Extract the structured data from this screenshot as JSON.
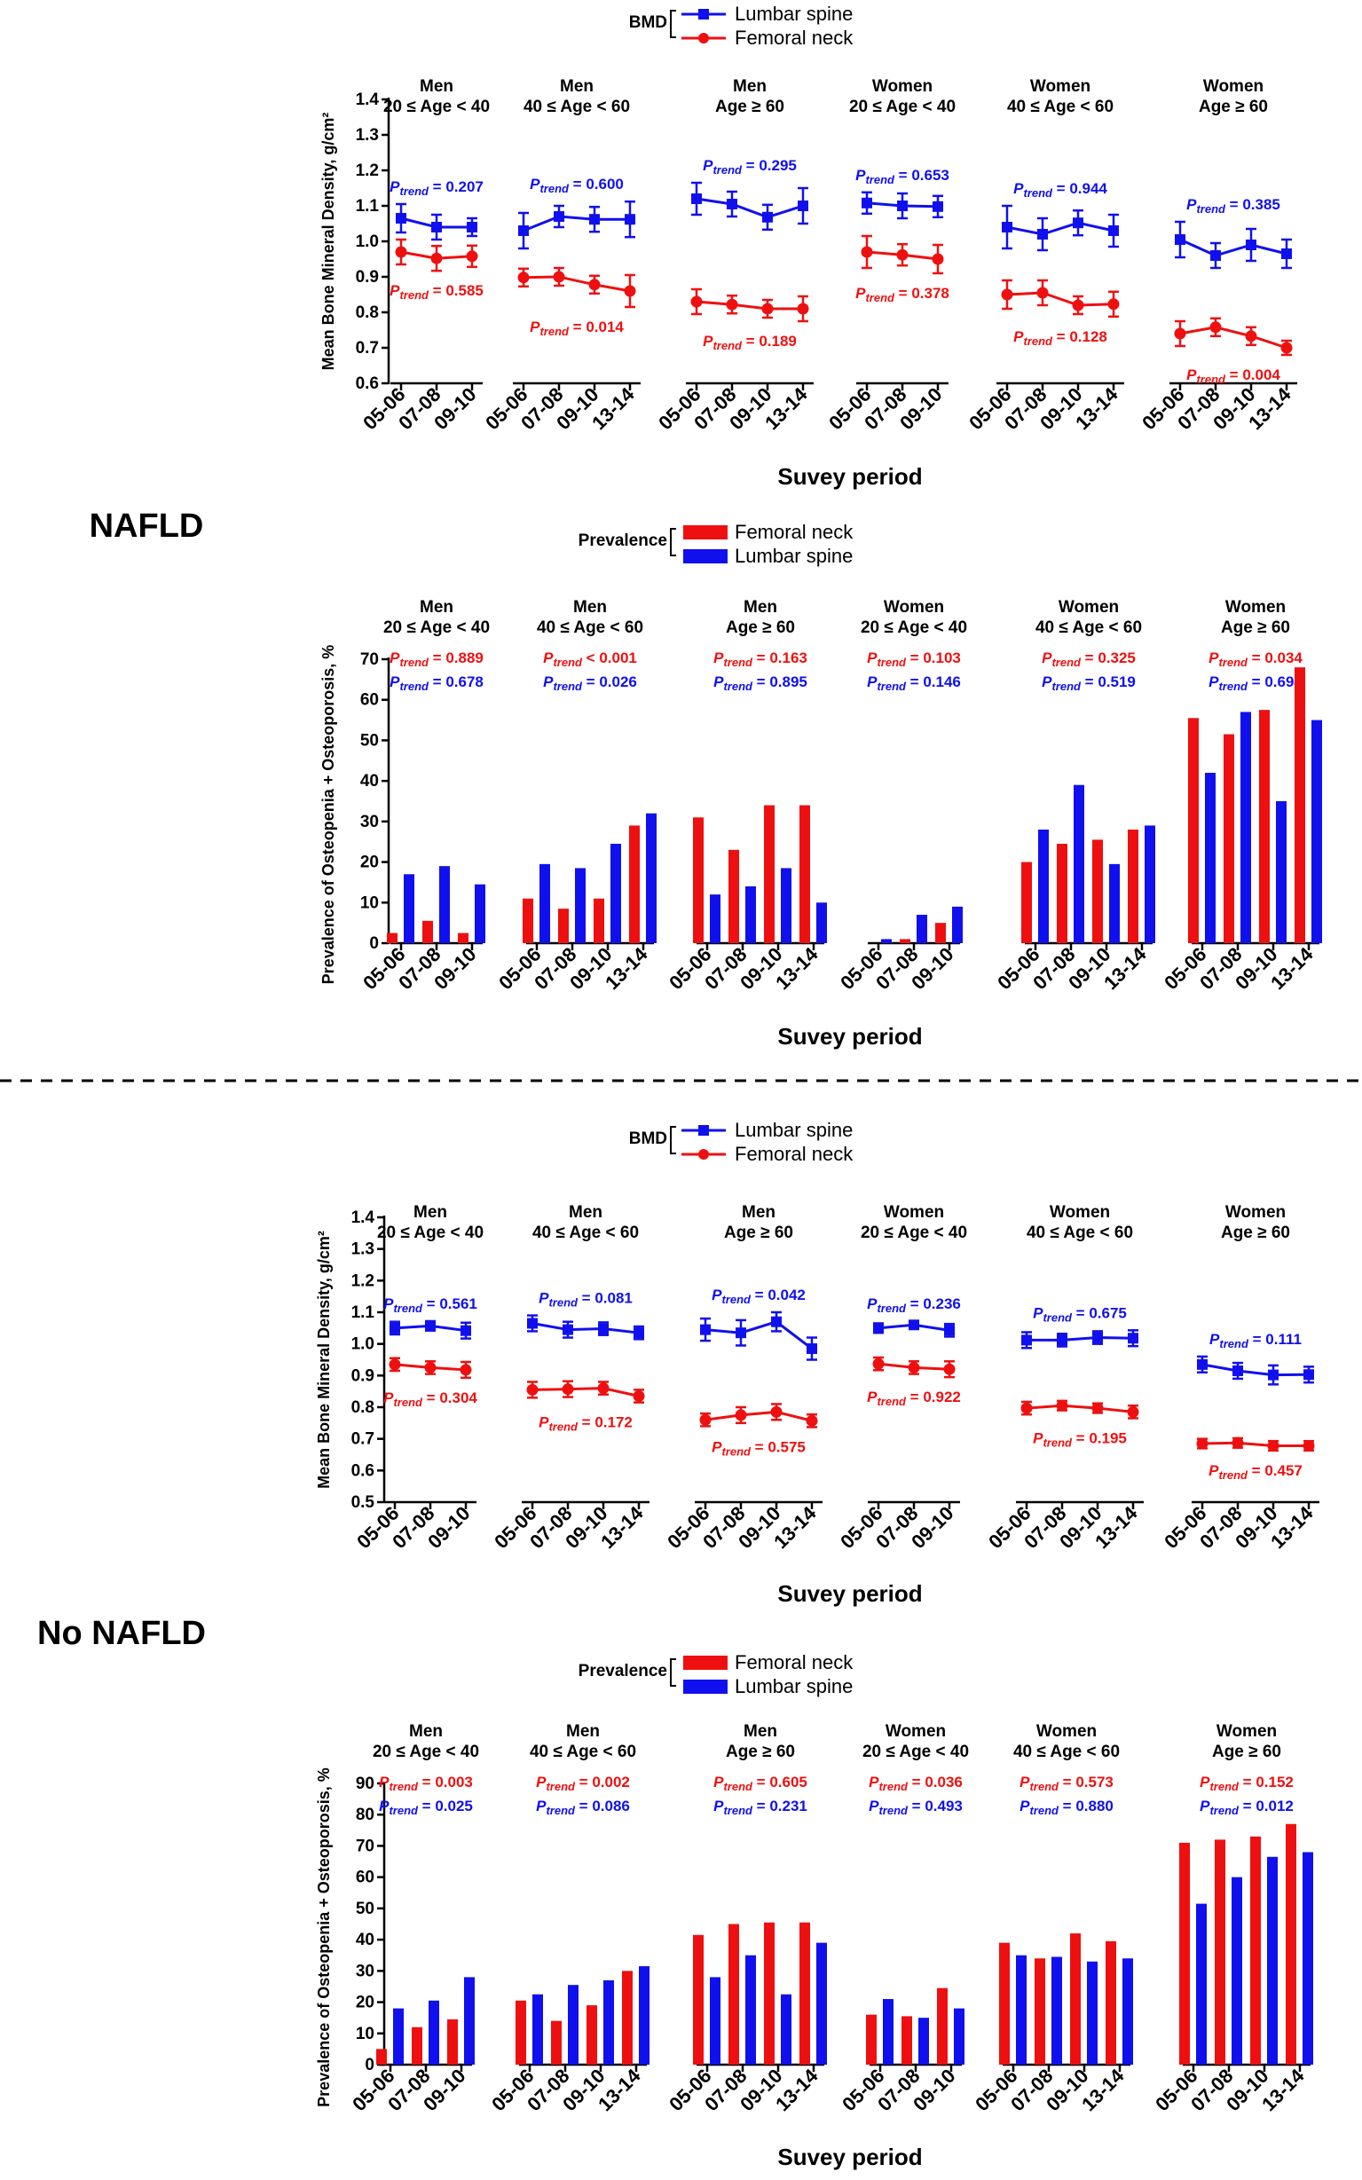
{
  "colors": {
    "lumbar": "#1010ee",
    "femoral": "#ee1010"
  },
  "sections": [
    {
      "label": "NAFLD",
      "bmd": {
        "legend_title": "BMD",
        "legend": [
          "Lumbar spine",
          "Femoral neck"
        ],
        "ylabel": "Mean Bone Mineral Density, g/cm²",
        "xlabel": "Suvey period",
        "yticks": [
          "1.4",
          "1.3",
          "1.2",
          "1.1",
          "1.0",
          "0.9",
          "0.8",
          "0.7",
          "0.6"
        ]
      },
      "prev": {
        "legend_title": "Prevalence",
        "legend": [
          "Femoral neck",
          "Lumbar spine"
        ],
        "ylabel": "Prevalence of Osteopenia + Osteoporosis, %",
        "xlabel": "Suvey period",
        "yticks": [
          "70",
          "60",
          "50",
          "40",
          "30",
          "20",
          "10",
          "0"
        ]
      }
    },
    {
      "label": "No NAFLD",
      "bmd": {
        "legend_title": "BMD",
        "legend": [
          "Lumbar spine",
          "Femoral neck"
        ],
        "ylabel": "Mean Bone Mineral Density, g/cm²",
        "xlabel": "Suvey period",
        "yticks": [
          "1.4",
          "1.3",
          "1.2",
          "1.1",
          "1.0",
          "0.9",
          "0.8",
          "0.7",
          "0.6",
          "0.5"
        ]
      },
      "prev": {
        "legend_title": "Prevalence",
        "legend": [
          "Femoral neck",
          "Lumbar spine"
        ],
        "ylabel": "Prevalence of Osteopenia + Osteoporosis, %",
        "xlabel": "Suvey period",
        "yticks": [
          "90",
          "80",
          "70",
          "60",
          "50",
          "40",
          "30",
          "20",
          "10",
          "0"
        ]
      }
    }
  ],
  "chart_data": [
    {
      "type": "line",
      "title": "NAFLD - Mean Bone Mineral Density",
      "ylabel": "Mean Bone Mineral Density, g/cm²",
      "xlabel": "Suvey period",
      "ylim": [
        0.6,
        1.4
      ],
      "legend_title": "BMD",
      "legend_position": "top-center",
      "groups": [
        {
          "title": [
            "Men",
            "20 ≤ Age < 40"
          ],
          "periods": [
            "05-06",
            "07-08",
            "09-10"
          ],
          "lumbar": [
            1.065,
            1.04,
            1.04
          ],
          "lumbar_err": [
            0.04,
            0.035,
            0.025
          ],
          "femoral": [
            0.97,
            0.952,
            0.958
          ],
          "femoral_err": [
            0.035,
            0.035,
            0.03
          ],
          "p_lumbar": "= 0.207",
          "p_femoral": "= 0.585"
        },
        {
          "title": [
            "Men",
            "40 ≤ Age < 60"
          ],
          "periods": [
            "05-06",
            "07-08",
            "09-10",
            "13-14"
          ],
          "lumbar": [
            1.03,
            1.07,
            1.062,
            1.062
          ],
          "lumbar_err": [
            0.05,
            0.03,
            0.035,
            0.05
          ],
          "femoral": [
            0.898,
            0.9,
            0.878,
            0.86
          ],
          "femoral_err": [
            0.025,
            0.025,
            0.025,
            0.045
          ],
          "p_lumbar": "= 0.600",
          "p_femoral": "= 0.014"
        },
        {
          "title": [
            "Men",
            "Age ≥ 60"
          ],
          "periods": [
            "05-06",
            "07-08",
            "09-10",
            "13-14"
          ],
          "lumbar": [
            1.12,
            1.105,
            1.068,
            1.1
          ],
          "lumbar_err": [
            0.045,
            0.035,
            0.035,
            0.05
          ],
          "femoral": [
            0.83,
            0.822,
            0.81,
            0.81
          ],
          "femoral_err": [
            0.035,
            0.025,
            0.025,
            0.035
          ],
          "p_lumbar": "= 0.295",
          "p_femoral": "= 0.189"
        },
        {
          "title": [
            "Women",
            "20 ≤ Age < 40"
          ],
          "periods": [
            "05-06",
            "07-08",
            "09-10"
          ],
          "lumbar": [
            1.108,
            1.1,
            1.098
          ],
          "lumbar_err": [
            0.03,
            0.035,
            0.03
          ],
          "femoral": [
            0.97,
            0.962,
            0.95
          ],
          "femoral_err": [
            0.045,
            0.03,
            0.04
          ],
          "p_lumbar": "= 0.653",
          "p_femoral": "= 0.378"
        },
        {
          "title": [
            "Women",
            "40 ≤ Age < 60"
          ],
          "periods": [
            "05-06",
            "07-08",
            "09-10",
            "13-14"
          ],
          "lumbar": [
            1.04,
            1.02,
            1.052,
            1.03
          ],
          "lumbar_err": [
            0.06,
            0.045,
            0.035,
            0.045
          ],
          "femoral": [
            0.85,
            0.855,
            0.82,
            0.823
          ],
          "femoral_err": [
            0.04,
            0.035,
            0.025,
            0.035
          ],
          "p_lumbar": "= 0.944",
          "p_femoral": "= 0.128"
        },
        {
          "title": [
            "Women",
            "Age ≥ 60"
          ],
          "periods": [
            "05-06",
            "07-08",
            "09-10",
            "13-14"
          ],
          "lumbar": [
            1.005,
            0.96,
            0.99,
            0.965
          ],
          "lumbar_err": [
            0.05,
            0.035,
            0.045,
            0.04
          ],
          "femoral": [
            0.74,
            0.758,
            0.733,
            0.7
          ],
          "femoral_err": [
            0.035,
            0.025,
            0.025,
            0.02
          ],
          "p_lumbar": "= 0.385",
          "p_femoral": "= 0.004"
        }
      ]
    },
    {
      "type": "bar",
      "title": "NAFLD - Prevalence of Osteopenia + Osteoporosis",
      "ylabel": "Prevalence of Osteopenia + Osteoporosis, %",
      "xlabel": "Suvey period",
      "ylim": [
        0,
        70
      ],
      "legend_title": "Prevalence",
      "legend_position": "top-center",
      "groups": [
        {
          "title": [
            "Men",
            "20 ≤ Age < 40"
          ],
          "periods": [
            "05-06",
            "07-08",
            "09-10"
          ],
          "femoral": [
            2.5,
            5.5,
            2.5
          ],
          "lumbar": [
            17,
            19,
            14.5
          ],
          "p_femoral": "= 0.889",
          "p_lumbar": "= 0.678"
        },
        {
          "title": [
            "Men",
            "40 ≤ Age < 60"
          ],
          "periods": [
            "05-06",
            "07-08",
            "09-10",
            "13-14"
          ],
          "femoral": [
            11,
            8.5,
            11,
            29
          ],
          "lumbar": [
            19.5,
            18.5,
            24.5,
            32
          ],
          "p_femoral": "< 0.001",
          "p_lumbar": "= 0.026"
        },
        {
          "title": [
            "Men",
            "Age ≥ 60"
          ],
          "periods": [
            "05-06",
            "07-08",
            "09-10",
            "13-14"
          ],
          "femoral": [
            31,
            23,
            34,
            34
          ],
          "lumbar": [
            12,
            14,
            18.5,
            10
          ],
          "p_femoral": "= 0.163",
          "p_lumbar": "= 0.895"
        },
        {
          "title": [
            "Women",
            "20 ≤ Age < 40"
          ],
          "periods": [
            "05-06",
            "07-08",
            "09-10"
          ],
          "femoral": [
            0,
            1,
            5
          ],
          "lumbar": [
            1,
            7,
            9
          ],
          "p_femoral": "= 0.103",
          "p_lumbar": "= 0.146"
        },
        {
          "title": [
            "Women",
            "40 ≤ Age < 60"
          ],
          "periods": [
            "05-06",
            "07-08",
            "09-10",
            "13-14"
          ],
          "femoral": [
            20,
            24.5,
            25.5,
            28
          ],
          "lumbar": [
            28,
            39,
            19.5,
            29
          ],
          "p_femoral": "= 0.325",
          "p_lumbar": "= 0.519"
        },
        {
          "title": [
            "Women",
            "Age ≥ 60"
          ],
          "periods": [
            "05-06",
            "07-08",
            "09-10",
            "13-14"
          ],
          "femoral": [
            55.5,
            51.5,
            57.5,
            68
          ],
          "lumbar": [
            42,
            57,
            35,
            55
          ],
          "p_femoral": "= 0.034",
          "p_lumbar": "= 0.694"
        }
      ]
    },
    {
      "type": "line",
      "title": "No NAFLD - Mean Bone Mineral Density",
      "ylabel": "Mean Bone Mineral Density, g/cm²",
      "xlabel": "Suvey period",
      "ylim": [
        0.5,
        1.4
      ],
      "legend_title": "BMD",
      "legend_position": "top-center",
      "groups": [
        {
          "title": [
            "Men",
            "20 ≤ Age < 40"
          ],
          "periods": [
            "05-06",
            "07-08",
            "09-10"
          ],
          "lumbar": [
            1.05,
            1.057,
            1.042
          ],
          "lumbar_err": [
            0.02,
            0.015,
            0.025
          ],
          "femoral": [
            0.935,
            0.925,
            0.918
          ],
          "femoral_err": [
            0.02,
            0.02,
            0.025
          ],
          "p_lumbar": "= 0.561",
          "p_femoral": "= 0.304"
        },
        {
          "title": [
            "Men",
            "40 ≤ Age < 60"
          ],
          "periods": [
            "05-06",
            "07-08",
            "09-10",
            "13-14"
          ],
          "lumbar": [
            1.065,
            1.045,
            1.048,
            1.035
          ],
          "lumbar_err": [
            0.025,
            0.025,
            0.02,
            0.02
          ],
          "femoral": [
            0.855,
            0.857,
            0.86,
            0.835
          ],
          "femoral_err": [
            0.025,
            0.025,
            0.02,
            0.02
          ],
          "p_lumbar": "= 0.081",
          "p_femoral": "= 0.172"
        },
        {
          "title": [
            "Men",
            "Age ≥ 60"
          ],
          "periods": [
            "05-06",
            "07-08",
            "09-10",
            "13-14"
          ],
          "lumbar": [
            1.045,
            1.035,
            1.07,
            0.985
          ],
          "lumbar_err": [
            0.035,
            0.04,
            0.03,
            0.035
          ],
          "femoral": [
            0.76,
            0.775,
            0.785,
            0.757
          ],
          "femoral_err": [
            0.02,
            0.025,
            0.025,
            0.02
          ],
          "p_lumbar": "= 0.042",
          "p_femoral": "= 0.575"
        },
        {
          "title": [
            "Women",
            "20 ≤ Age < 40"
          ],
          "periods": [
            "05-06",
            "07-08",
            "09-10"
          ],
          "lumbar": [
            1.05,
            1.06,
            1.043
          ],
          "lumbar_err": [
            0.015,
            0.012,
            0.02
          ],
          "femoral": [
            0.937,
            0.925,
            0.92
          ],
          "femoral_err": [
            0.02,
            0.02,
            0.025
          ],
          "p_lumbar": "= 0.236",
          "p_femoral": "= 0.922"
        },
        {
          "title": [
            "Women",
            "40 ≤ Age < 60"
          ],
          "periods": [
            "05-06",
            "07-08",
            "09-10",
            "13-14"
          ],
          "lumbar": [
            1.012,
            1.012,
            1.02,
            1.018
          ],
          "lumbar_err": [
            0.025,
            0.02,
            0.02,
            0.025
          ],
          "femoral": [
            0.797,
            0.805,
            0.797,
            0.785
          ],
          "femoral_err": [
            0.02,
            0.015,
            0.015,
            0.02
          ],
          "p_lumbar": "= 0.675",
          "p_femoral": "= 0.195"
        },
        {
          "title": [
            "Women",
            "Age ≥ 60"
          ],
          "periods": [
            "05-06",
            "07-08",
            "09-10",
            "13-14"
          ],
          "lumbar": [
            0.935,
            0.915,
            0.902,
            0.903
          ],
          "lumbar_err": [
            0.025,
            0.025,
            0.03,
            0.025
          ],
          "femoral": [
            0.685,
            0.687,
            0.678,
            0.678
          ],
          "femoral_err": [
            0.015,
            0.015,
            0.015,
            0.015
          ],
          "p_lumbar": "= 0.111",
          "p_femoral": "= 0.457"
        }
      ]
    },
    {
      "type": "bar",
      "title": "No NAFLD - Prevalence of Osteopenia + Osteoporosis",
      "ylabel": "Prevalence of Osteopenia + Osteoporosis, %",
      "xlabel": "Suvey period",
      "ylim": [
        0,
        90
      ],
      "legend_title": "Prevalence",
      "legend_position": "top-center",
      "groups": [
        {
          "title": [
            "Men",
            "20 ≤ Age < 40"
          ],
          "periods": [
            "05-06",
            "07-08",
            "09-10"
          ],
          "femoral": [
            5,
            12,
            14.5
          ],
          "lumbar": [
            18,
            20.5,
            28
          ],
          "p_femoral": "= 0.003",
          "p_lumbar": "= 0.025"
        },
        {
          "title": [
            "Men",
            "40 ≤ Age < 60"
          ],
          "periods": [
            "05-06",
            "07-08",
            "09-10",
            "13-14"
          ],
          "femoral": [
            20.5,
            14,
            19,
            30
          ],
          "lumbar": [
            22.5,
            25.5,
            27,
            31.5
          ],
          "p_femoral": "= 0.002",
          "p_lumbar": "= 0.086"
        },
        {
          "title": [
            "Men",
            "Age ≥ 60"
          ],
          "periods": [
            "05-06",
            "07-08",
            "09-10",
            "13-14"
          ],
          "femoral": [
            41.5,
            45,
            45.5,
            45.5
          ],
          "lumbar": [
            28,
            35,
            22.5,
            39
          ],
          "p_femoral": "= 0.605",
          "p_lumbar": "= 0.231"
        },
        {
          "title": [
            "Women",
            "20 ≤ Age < 40"
          ],
          "periods": [
            "05-06",
            "07-08",
            "09-10"
          ],
          "femoral": [
            16,
            15.5,
            24.5
          ],
          "lumbar": [
            21,
            15,
            18
          ],
          "p_femoral": "= 0.036",
          "p_lumbar": "= 0.493"
        },
        {
          "title": [
            "Women",
            "40 ≤ Age < 60"
          ],
          "periods": [
            "05-06",
            "07-08",
            "09-10",
            "13-14"
          ],
          "femoral": [
            39,
            34,
            42,
            39.5
          ],
          "lumbar": [
            35,
            34.5,
            33,
            34
          ],
          "p_femoral": "= 0.573",
          "p_lumbar": "= 0.880"
        },
        {
          "title": [
            "Women",
            "Age ≥ 60"
          ],
          "periods": [
            "05-06",
            "07-08",
            "09-10",
            "13-14"
          ],
          "femoral": [
            71,
            72,
            73,
            77
          ],
          "lumbar": [
            51.5,
            60,
            66.5,
            68
          ],
          "p_femoral": "= 0.152",
          "p_lumbar": "= 0.012"
        }
      ]
    }
  ]
}
